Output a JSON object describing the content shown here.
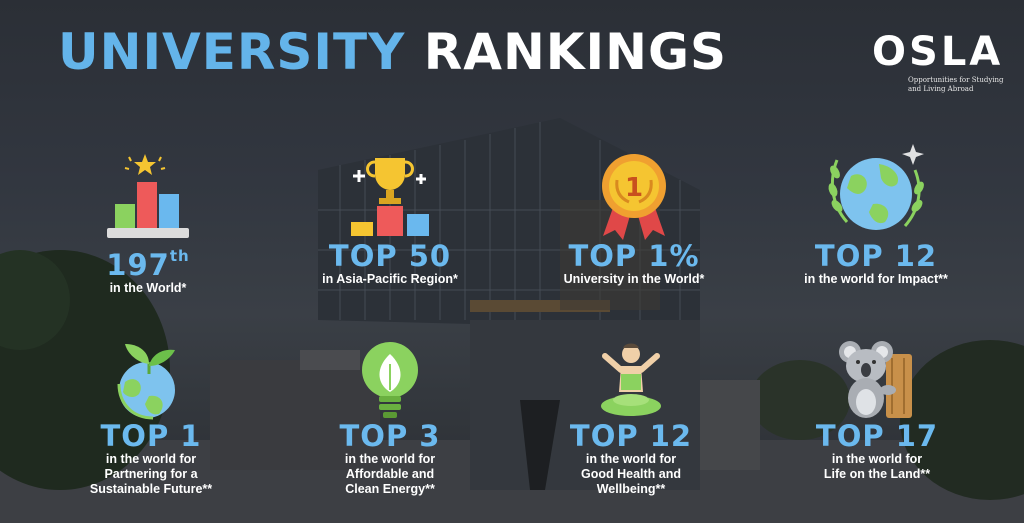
{
  "title": {
    "part1": "UNIVERSITY",
    "part2": "RANKINGS"
  },
  "logo": {
    "mark": "OSLA",
    "tagline_line1": "Opportunities for Studying",
    "tagline_line2": "and Living Abroad"
  },
  "stats": [
    {
      "icon": "bar-chart-star-icon",
      "rank_main": "197",
      "rank_sup": "th",
      "desc_lines": [
        "in the World*"
      ]
    },
    {
      "icon": "trophy-podium-icon",
      "rank_main": "TOP 50",
      "desc_lines": [
        "in Asia-Pacific Region*"
      ]
    },
    {
      "icon": "medal-icon",
      "rank_main": "TOP 1%",
      "desc_lines": [
        "University in the World*"
      ]
    },
    {
      "icon": "globe-leaves-icon",
      "rank_main": "TOP 12",
      "desc_lines": [
        "in the world for Impact**"
      ]
    },
    {
      "icon": "earth-sprout-icon",
      "rank_main": "TOP 1",
      "desc_lines": [
        "in the world for",
        "Partnering for a",
        "Sustainable Future**"
      ]
    },
    {
      "icon": "eco-lightbulb-icon",
      "rank_main": "TOP 3",
      "desc_lines": [
        "in the world for",
        "Affordable and",
        "Clean Energy**"
      ]
    },
    {
      "icon": "yoga-person-icon",
      "rank_main": "TOP 12",
      "desc_lines": [
        "in the world for",
        "Good Health and",
        "Wellbeing**"
      ]
    },
    {
      "icon": "koala-icon",
      "rank_main": "TOP 17",
      "desc_lines": [
        "in the world for",
        "Life on the Land**"
      ]
    }
  ]
}
